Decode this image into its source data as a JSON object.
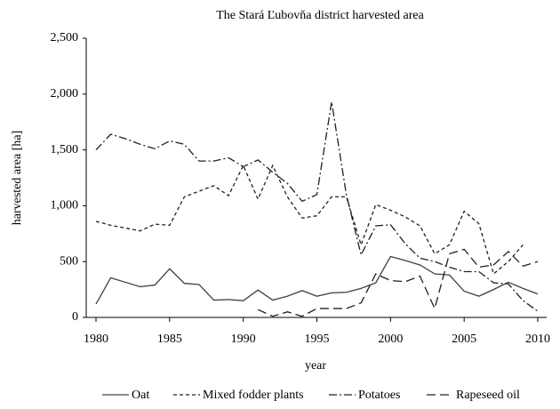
{
  "chart_data": {
    "type": "line",
    "title": "The Stará Ľubovňa district harvested area",
    "x_label": "year",
    "y_label": "harvested area [ha]",
    "x": [
      1980,
      1981,
      1982,
      1983,
      1984,
      1985,
      1986,
      1987,
      1988,
      1989,
      1990,
      1991,
      1992,
      1993,
      1994,
      1995,
      1996,
      1997,
      1998,
      1999,
      2000,
      2001,
      2002,
      2003,
      2004,
      2005,
      2006,
      2007,
      2008,
      2009,
      2010
    ],
    "xlim": [
      1980,
      2010
    ],
    "xticks": [
      1980,
      1985,
      1990,
      1995,
      2000,
      2005,
      2010
    ],
    "ylim": [
      0,
      2500
    ],
    "yticks": [
      0,
      {
        "value": 500,
        "label": "500"
      },
      {
        "value": 1000,
        "label": "1,000"
      },
      {
        "value": 1500,
        "label": "1,500"
      },
      {
        "value": 2000,
        "label": "2,000"
      },
      {
        "value": 2500,
        "label": "2,500"
      }
    ],
    "grid": false,
    "legend": "bottom",
    "series": [
      {
        "name": "Oat",
        "color": "#404040",
        "dash": "solid",
        "values": [
          120,
          355,
          315,
          275,
          290,
          435,
          305,
          295,
          155,
          160,
          150,
          245,
          155,
          190,
          240,
          190,
          220,
          225,
          260,
          310,
          545,
          510,
          470,
          390,
          380,
          235,
          190,
          250,
          315,
          260,
          210
        ]
      },
      {
        "name": "Mixed fodder plants",
        "color": "#202020",
        "dash": "dashed",
        "values": [
          860,
          825,
          800,
          775,
          835,
          825,
          1080,
          1130,
          1180,
          1090,
          1360,
          1060,
          1360,
          1080,
          890,
          910,
          1080,
          1080,
          650,
          1010,
          960,
          900,
          820,
          570,
          650,
          950,
          840,
          390,
          500,
          650,
          null
        ]
      },
      {
        "name": "Potatoes",
        "color": "#202020",
        "dash": "dash-dot",
        "values": [
          1500,
          1640,
          1600,
          1550,
          1510,
          1580,
          1550,
          1400,
          1400,
          1430,
          1350,
          1410,
          1300,
          1200,
          1040,
          1100,
          1930,
          1100,
          560,
          820,
          830,
          660,
          530,
          500,
          450,
          410,
          410,
          310,
          300,
          150,
          55
        ]
      },
      {
        "name": "Rapeseed oil",
        "color": "#202020",
        "dash": "long-dash",
        "values": [
          null,
          null,
          null,
          null,
          null,
          null,
          null,
          null,
          null,
          null,
          null,
          70,
          10,
          50,
          10,
          80,
          80,
          80,
          130,
          390,
          330,
          320,
          370,
          80,
          570,
          610,
          450,
          470,
          590,
          460,
          500
        ]
      }
    ]
  }
}
